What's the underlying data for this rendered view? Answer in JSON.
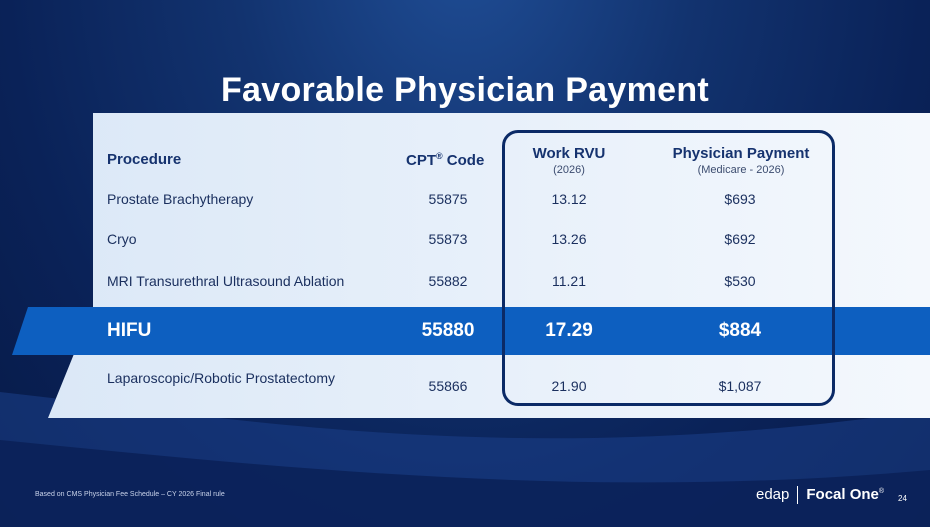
{
  "title": "Favorable Physician Payment",
  "table": {
    "headers": {
      "procedure": "Procedure",
      "cpt": "CPT",
      "cpt_sup": "®",
      "cpt_suffix": " Code",
      "work_rvu": "Work RVU",
      "work_rvu_sub": "(2026)",
      "payment": "Physician Payment",
      "payment_sub": "(Medicare - 2026)"
    },
    "rows": [
      {
        "procedure": "Prostate Brachytherapy",
        "cpt": "55875",
        "rvu": "13.12",
        "payment": "$693"
      },
      {
        "procedure": "Cryo",
        "cpt": "55873",
        "rvu": "13.26",
        "payment": "$692"
      },
      {
        "procedure": "MRI Transurethral Ultrasound Ablation",
        "cpt": "55882",
        "rvu": "11.21",
        "payment": "$530"
      },
      {
        "procedure": "HIFU",
        "cpt": "55880",
        "rvu": "17.29",
        "payment": "$884",
        "highlighted": true
      },
      {
        "procedure": "Laparoscopic/Robotic Prostatectomy",
        "cpt": "55866",
        "rvu": "21.90",
        "payment": "$1,087"
      }
    ]
  },
  "footer": {
    "note": "Based on CMS Physician Fee Schedule – CY 2026 Final rule",
    "logo_left": "edap",
    "logo_right": "Focal One",
    "logo_mark": "®",
    "page": "24"
  },
  "colors": {
    "accent": "#0d5fc0",
    "navy": "#0b2a66",
    "panel": "#e6f0fb"
  }
}
